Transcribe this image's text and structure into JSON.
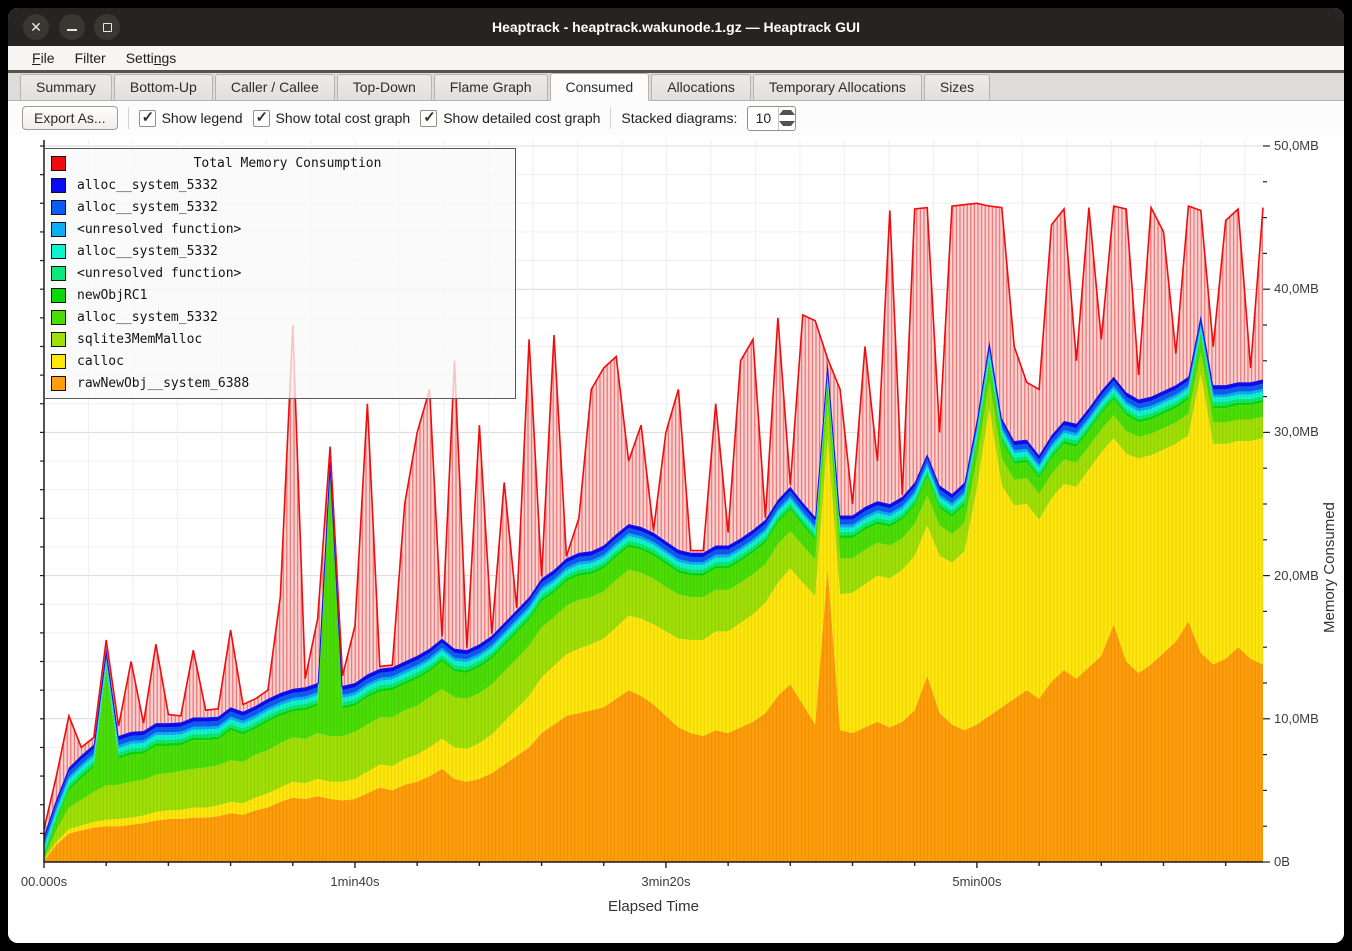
{
  "window": {
    "title": "Heaptrack - heaptrack.wakunode.1.gz — Heaptrack GUI",
    "controls": [
      "close",
      "minimize",
      "maximize"
    ]
  },
  "menus": [
    {
      "label": "File",
      "accel_index": 0
    },
    {
      "label": "Filter",
      "accel_index": -1
    },
    {
      "label": "Settings",
      "accel_index": 5
    }
  ],
  "tabs": [
    {
      "label": "Summary",
      "active": false
    },
    {
      "label": "Bottom-Up",
      "active": false
    },
    {
      "label": "Caller / Callee",
      "active": false
    },
    {
      "label": "Top-Down",
      "active": false
    },
    {
      "label": "Flame Graph",
      "active": false
    },
    {
      "label": "Consumed",
      "active": true
    },
    {
      "label": "Allocations",
      "active": false
    },
    {
      "label": "Temporary Allocations",
      "active": false
    },
    {
      "label": "Sizes",
      "active": false
    }
  ],
  "toolbar": {
    "export_label": "Export As...",
    "checkboxes": [
      {
        "label": "Show legend",
        "checked": true
      },
      {
        "label": "Show total cost graph",
        "checked": true
      },
      {
        "label": "Show detailed cost graph",
        "checked": true
      }
    ],
    "stacked_label": "Stacked diagrams:",
    "spin_value": "10"
  },
  "chart_data": {
    "type": "area",
    "title": "Total Memory Consumption",
    "xlabel": "Elapsed Time",
    "ylabel": "Memory Consumed",
    "x_start": 0,
    "x_step": 4,
    "x_count": 99,
    "xlim": [
      0,
      392
    ],
    "ylim": [
      0,
      50
    ],
    "grid": {
      "minor_mb": 2,
      "major_mb": 10,
      "minor_s": 14.3,
      "tick_s": 20,
      "left_tick_mb": 2,
      "right_tick_mb": 2.5
    },
    "x_ticks": [
      {
        "s": 0,
        "label": "00.000s"
      },
      {
        "s": 100,
        "label": "1min40s"
      },
      {
        "s": 200,
        "label": "3min20s"
      },
      {
        "s": 300,
        "label": "5min00s"
      }
    ],
    "y_ticks": [
      {
        "mb": 0,
        "label": "0B"
      },
      {
        "mb": 10,
        "label": "10,0MB"
      },
      {
        "mb": 20,
        "label": "20,0MB"
      },
      {
        "mb": 30,
        "label": "30,0MB"
      },
      {
        "mb": 40,
        "label": "40,0MB"
      },
      {
        "mb": 50,
        "label": "50,0MB"
      }
    ],
    "series": [
      {
        "name": "rawNewObj__system_6388",
        "color": "#ff9d0a",
        "values": [
          0.1,
          1.2,
          2.0,
          2.2,
          2.4,
          2.5,
          2.5,
          2.6,
          2.7,
          2.9,
          3.0,
          3.0,
          3.1,
          3.1,
          3.2,
          3.4,
          3.3,
          3.6,
          3.8,
          4.2,
          4.5,
          4.4,
          4.6,
          4.4,
          4.3,
          4.4,
          4.8,
          5.2,
          5.0,
          5.4,
          5.6,
          6.0,
          6.5,
          5.8,
          5.6,
          5.8,
          6.2,
          6.8,
          7.4,
          8.0,
          9.0,
          9.6,
          10.2,
          10.4,
          10.6,
          10.8,
          11.4,
          12.0,
          11.6,
          11.0,
          10.2,
          9.4,
          9.0,
          8.8,
          9.2,
          9.0,
          9.4,
          9.8,
          10.4,
          11.6,
          12.4,
          11.0,
          9.6,
          20.5,
          9.2,
          9.0,
          9.4,
          9.8,
          9.4,
          9.8,
          10.6,
          13.0,
          10.4,
          9.6,
          9.2,
          9.6,
          10.2,
          10.8,
          11.4,
          12.0,
          11.4,
          12.6,
          13.4,
          12.8,
          13.6,
          14.4,
          16.6,
          14.0,
          13.2,
          13.8,
          14.6,
          15.4,
          16.8,
          14.6,
          13.8,
          14.2,
          15.0,
          14.2,
          13.8
        ]
      },
      {
        "name": "calloc",
        "color": "#ffe70c",
        "values": [
          0.05,
          0.2,
          0.3,
          0.35,
          0.4,
          0.45,
          0.5,
          0.5,
          0.55,
          0.6,
          0.6,
          0.65,
          0.7,
          0.7,
          0.75,
          0.8,
          0.8,
          0.9,
          1.0,
          1.0,
          1.1,
          1.1,
          1.2,
          1.2,
          1.3,
          1.4,
          1.5,
          1.6,
          1.7,
          1.8,
          1.9,
          2.0,
          2.1,
          2.2,
          2.3,
          2.5,
          2.7,
          3.0,
          3.3,
          3.6,
          3.9,
          4.1,
          4.3,
          4.5,
          4.6,
          4.8,
          5.0,
          5.2,
          5.4,
          5.6,
          5.9,
          6.2,
          6.5,
          6.7,
          6.9,
          7.1,
          7.3,
          7.5,
          7.7,
          7.9,
          8.1,
          8.5,
          9.0,
          9.0,
          9.5,
          9.8,
          10.0,
          10.2,
          10.4,
          10.6,
          10.8,
          10.5,
          11.0,
          11.3,
          12.5,
          16.5,
          21.5,
          15.5,
          13.5,
          13.0,
          12.5,
          12.8,
          13.0,
          13.4,
          13.8,
          14.2,
          13.0,
          14.5,
          15.0,
          14.6,
          14.2,
          13.8,
          13.0,
          19.5,
          15.4,
          15.0,
          14.4,
          15.2,
          15.8
        ]
      },
      {
        "name": "sqlite3MemMalloc",
        "color": "#9fe006",
        "values": [
          0.05,
          0.8,
          1.5,
          1.8,
          2.1,
          2.4,
          2.4,
          2.5,
          2.5,
          2.6,
          2.6,
          2.7,
          2.7,
          2.8,
          2.8,
          2.9,
          2.9,
          3.0,
          3.0,
          3.1,
          3.1,
          3.1,
          3.2,
          3.2,
          3.2,
          3.3,
          3.3,
          3.3,
          3.4,
          3.4,
          3.4,
          3.5,
          3.5,
          3.5,
          3.5,
          3.5,
          3.5,
          3.5,
          3.5,
          3.5,
          3.5,
          3.4,
          3.4,
          3.4,
          3.3,
          3.3,
          3.3,
          3.2,
          3.2,
          3.2,
          3.1,
          3.1,
          3.0,
          3.0,
          2.9,
          2.9,
          2.8,
          2.8,
          2.7,
          2.7,
          2.6,
          2.6,
          2.5,
          2.5,
          2.5,
          2.4,
          2.4,
          2.3,
          2.3,
          2.2,
          2.2,
          2.1,
          2.1,
          2.0,
          2.0,
          2.0,
          1.9,
          1.9,
          1.8,
          1.8,
          1.8,
          1.7,
          1.7,
          1.7,
          1.6,
          1.6,
          1.6,
          1.6,
          1.5,
          1.5,
          1.5,
          1.5,
          1.5,
          1.5,
          1.5,
          1.5,
          1.5,
          1.5,
          1.5
        ]
      },
      {
        "name": "alloc__system_5332",
        "color": "#4ade06",
        "values": [
          0.05,
          0.6,
          1.2,
          1.5,
          1.7,
          8.0,
          1.8,
          1.9,
          1.8,
          2.0,
          1.9,
          1.8,
          2.0,
          1.9,
          1.8,
          2.1,
          1.9,
          1.8,
          2.0,
          1.9,
          1.8,
          2.0,
          1.9,
          18.0,
          1.9,
          1.8,
          1.9,
          1.8,
          1.9,
          1.8,
          1.9,
          1.8,
          1.9,
          1.8,
          1.8,
          1.8,
          1.8,
          1.8,
          1.8,
          1.8,
          1.8,
          1.7,
          1.7,
          1.7,
          1.6,
          1.6,
          1.6,
          1.6,
          1.6,
          1.6,
          1.6,
          1.5,
          1.5,
          1.5,
          1.5,
          1.5,
          1.5,
          1.5,
          1.5,
          1.5,
          1.5,
          1.4,
          1.4,
          1.4,
          1.4,
          1.4,
          1.4,
          1.3,
          1.3,
          1.3,
          1.3,
          1.3,
          1.2,
          1.2,
          1.2,
          1.2,
          1.2,
          1.2,
          1.1,
          1.1,
          1.1,
          1.1,
          1.1,
          1.1,
          1.1,
          1.1,
          1.1,
          1.1,
          1.0,
          1.0,
          1.0,
          1.0,
          1.0,
          1.0,
          1.0,
          1.0,
          1.0,
          1.0,
          1.0
        ]
      },
      {
        "name": "newObjRC1",
        "color": "#06d906",
        "constant": 0.2
      },
      {
        "name": "<unresolved function>",
        "color": "#0be87c",
        "constant": 0.25
      },
      {
        "name": "alloc__system_5332",
        "color": "#0bf5cf",
        "constant": 0.3
      },
      {
        "name": "<unresolved function>",
        "color": "#0aaef5",
        "constant": 0.2
      },
      {
        "name": "alloc__system_5332",
        "color": "#0a5cf5",
        "constant": 0.35
      },
      {
        "name": "alloc__system_5332",
        "color": "#0b0bf0",
        "constant": 0.3
      }
    ],
    "total": {
      "name": "Total Memory Consumption",
      "color": "#f00c0c",
      "values": [
        2.3,
        6.0,
        10.2,
        8.0,
        8.7,
        15.5,
        9.5,
        14.0,
        9.7,
        15.2,
        10.3,
        10.2,
        14.8,
        10.6,
        10.7,
        16.2,
        11.0,
        11.4,
        12.0,
        18.5,
        37.5,
        12.8,
        17.0,
        29.0,
        13.0,
        16.5,
        32.0,
        13.2,
        12.2,
        25.0,
        30.0,
        33.0,
        14.5,
        35.0,
        13.2,
        30.5,
        13.6,
        26.5,
        15.2,
        36.5,
        15.5,
        36.8,
        16.2,
        24.0,
        33.0,
        34.5,
        35.3,
        28.0,
        30.5,
        17.0,
        30.0,
        33.0,
        16.2,
        15.8,
        32.0,
        23.0,
        35.0,
        36.5,
        17.5,
        38.0,
        18.0,
        38.2,
        37.8,
        22.0,
        33.0,
        25.0,
        36.0,
        28.0,
        45.5,
        24.0,
        45.6,
        45.7,
        30.0,
        45.8,
        45.9,
        46.0,
        45.8,
        45.7,
        36.0,
        33.5,
        33.0,
        44.5,
        45.6,
        35.0,
        45.7,
        36.5,
        45.8,
        45.6,
        34.0,
        45.7,
        44.0,
        35.5,
        45.8,
        45.5,
        36.0,
        44.8,
        45.6,
        34.5,
        45.7
      ]
    },
    "legend_title": "Total Memory Consumption",
    "colors": {
      "grid_minor": "#efefef",
      "grid_major": "#d8d8d8",
      "axis": "#1a1a1a",
      "red_fill": "#f9d2d2",
      "red_hatch": "#ef7070",
      "cap_line": "#1414e8"
    }
  }
}
